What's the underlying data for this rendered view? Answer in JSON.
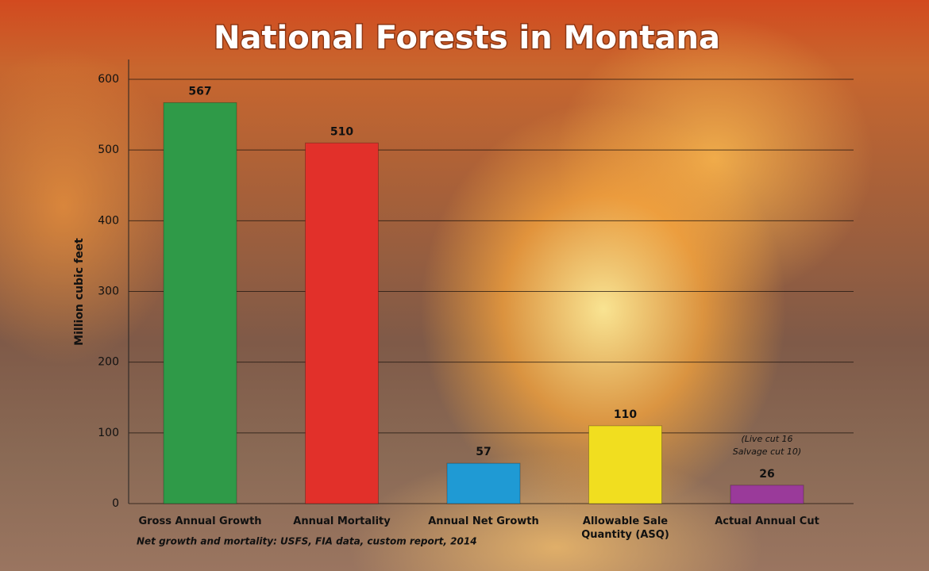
{
  "chart_data": {
    "type": "bar",
    "title": "National Forests in Montana",
    "y_label": "Million cubic feet",
    "categories": [
      "Gross Annual Growth",
      "Annual Mortality",
      "Annual Net Growth",
      "Allowable Sale Quantity (ASQ)",
      "Actual Annual Cut"
    ],
    "values": [
      567,
      510,
      57,
      110,
      26
    ],
    "colors": [
      "#2f9a48",
      "#e2302a",
      "#1f9ad4",
      "#f1de1f",
      "#9a3a9a"
    ],
    "ylim": [
      0,
      600
    ],
    "yticks": [
      0,
      100,
      200,
      300,
      400,
      500,
      600
    ],
    "grid": true,
    "annotation": [
      "(Live cut 16",
      "Salvage cut 10)"
    ],
    "source": "Net growth and mortality: USFS, FIA data, custom report, 2014"
  }
}
